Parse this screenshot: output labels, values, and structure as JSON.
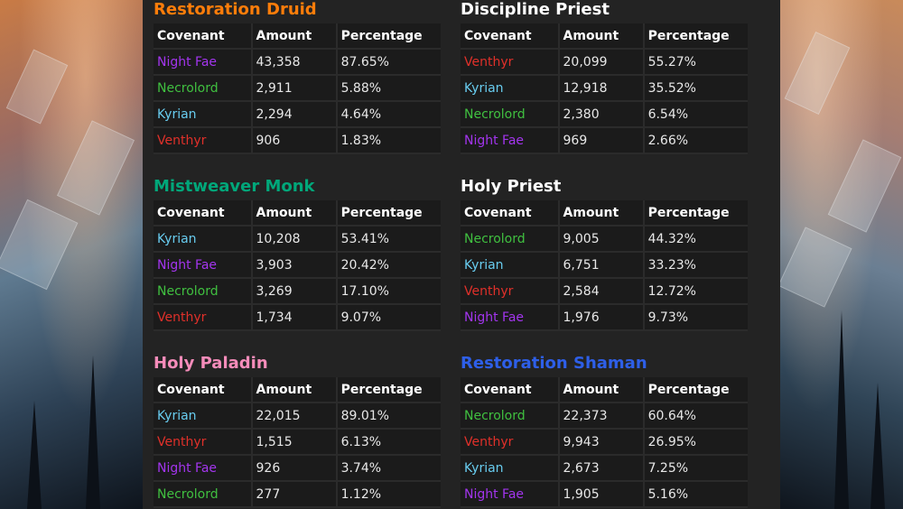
{
  "colors": {
    "Night Fae": "#a335ee",
    "Necrolord": "#40c040",
    "Kyrian": "#68ccef",
    "Venthyr": "#e0302a"
  },
  "sections": [
    {
      "title": "Restoration Druid",
      "title_color": "#ff7d0a",
      "headers": [
        "Covenant",
        "Amount",
        "Percentage"
      ],
      "rows": [
        {
          "covenant": "Night Fae",
          "amount": "43,358",
          "pct": "87.65%"
        },
        {
          "covenant": "Necrolord",
          "amount": "2,911",
          "pct": "5.88%"
        },
        {
          "covenant": "Kyrian",
          "amount": "2,294",
          "pct": "4.64%"
        },
        {
          "covenant": "Venthyr",
          "amount": "906",
          "pct": "1.83%"
        }
      ]
    },
    {
      "title": "Discipline Priest",
      "title_color": "#ffffff",
      "headers": [
        "Covenant",
        "Amount",
        "Percentage"
      ],
      "rows": [
        {
          "covenant": "Venthyr",
          "amount": "20,099",
          "pct": "55.27%"
        },
        {
          "covenant": "Kyrian",
          "amount": "12,918",
          "pct": "35.52%"
        },
        {
          "covenant": "Necrolord",
          "amount": "2,380",
          "pct": "6.54%"
        },
        {
          "covenant": "Night Fae",
          "amount": "969",
          "pct": "2.66%"
        }
      ]
    },
    {
      "title": "Mistweaver Monk",
      "title_color": "#00a77a",
      "headers": [
        "Covenant",
        "Amount",
        "Percentage"
      ],
      "rows": [
        {
          "covenant": "Kyrian",
          "amount": "10,208",
          "pct": "53.41%"
        },
        {
          "covenant": "Night Fae",
          "amount": "3,903",
          "pct": "20.42%"
        },
        {
          "covenant": "Necrolord",
          "amount": "3,269",
          "pct": "17.10%"
        },
        {
          "covenant": "Venthyr",
          "amount": "1,734",
          "pct": "9.07%"
        }
      ]
    },
    {
      "title": "Holy Priest",
      "title_color": "#ffffff",
      "headers": [
        "Covenant",
        "Amount",
        "Percentage"
      ],
      "rows": [
        {
          "covenant": "Necrolord",
          "amount": "9,005",
          "pct": "44.32%"
        },
        {
          "covenant": "Kyrian",
          "amount": "6,751",
          "pct": "33.23%"
        },
        {
          "covenant": "Venthyr",
          "amount": "2,584",
          "pct": "12.72%"
        },
        {
          "covenant": "Night Fae",
          "amount": "1,976",
          "pct": "9.73%"
        }
      ]
    },
    {
      "title": "Holy Paladin",
      "title_color": "#f58cba",
      "headers": [
        "Covenant",
        "Amount",
        "Percentage"
      ],
      "rows": [
        {
          "covenant": "Kyrian",
          "amount": "22,015",
          "pct": "89.01%"
        },
        {
          "covenant": "Venthyr",
          "amount": "1,515",
          "pct": "6.13%"
        },
        {
          "covenant": "Night Fae",
          "amount": "926",
          "pct": "3.74%"
        },
        {
          "covenant": "Necrolord",
          "amount": "277",
          "pct": "1.12%"
        }
      ]
    },
    {
      "title": "Restoration Shaman",
      "title_color": "#2e5fe8",
      "headers": [
        "Covenant",
        "Amount",
        "Percentage"
      ],
      "rows": [
        {
          "covenant": "Necrolord",
          "amount": "22,373",
          "pct": "60.64%"
        },
        {
          "covenant": "Venthyr",
          "amount": "9,943",
          "pct": "26.95%"
        },
        {
          "covenant": "Kyrian",
          "amount": "2,673",
          "pct": "7.25%"
        },
        {
          "covenant": "Night Fae",
          "amount": "1,905",
          "pct": "5.16%"
        }
      ]
    }
  ]
}
